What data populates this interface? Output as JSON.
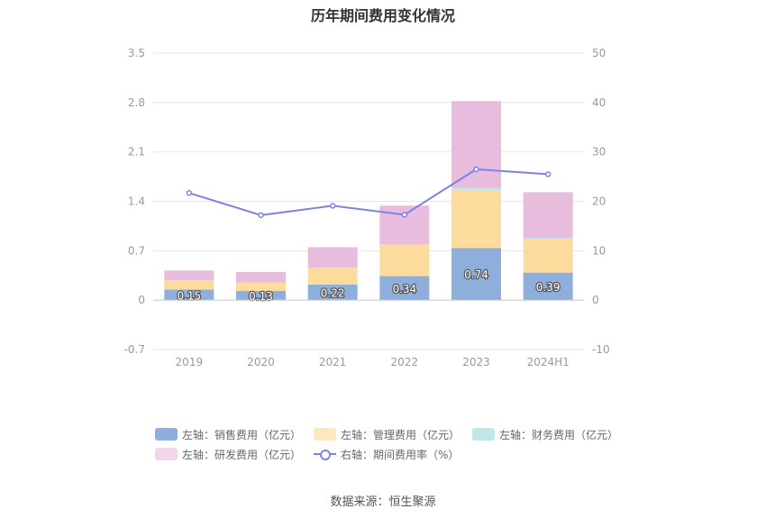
{
  "chart_data": {
    "type": "bar",
    "title": "历年期间费用变化情况",
    "categories": [
      "2019",
      "2020",
      "2021",
      "2022",
      "2023",
      "2024H1"
    ],
    "left_axis": {
      "ticks": [
        "3.5",
        "2.8",
        "2.1",
        "1.4",
        "0.7",
        "0",
        "-0.7"
      ],
      "ylim": [
        -0.7,
        3.5
      ]
    },
    "right_axis": {
      "ticks": [
        "50",
        "40",
        "30",
        "20",
        "10",
        "0",
        "-10"
      ],
      "ylim": [
        -10,
        50
      ]
    },
    "series": [
      {
        "name": "左轴：销售费用（亿元）",
        "kind": "stacked-bar",
        "color": "#8eaedc",
        "values": [
          0.15,
          0.13,
          0.22,
          0.34,
          0.74,
          0.39
        ],
        "labels": [
          "0.15",
          "0.13",
          "0.22",
          "0.34",
          "0.74",
          "0.39"
        ]
      },
      {
        "name": "左轴：管理费用（亿元）",
        "kind": "stacked-bar",
        "color": "#fddb9c",
        "values": [
          0.13,
          0.12,
          0.24,
          0.44,
          0.82,
          0.47
        ]
      },
      {
        "name": "左轴：财务费用（亿元）",
        "kind": "stacked-bar",
        "color": "#bfe8e7",
        "values": [
          0.0,
          0.0,
          0.0,
          0.01,
          0.03,
          0.02
        ]
      },
      {
        "name": "左轴：研发费用（亿元）",
        "kind": "stacked-bar",
        "color": "#e8bcdc",
        "values": [
          0.14,
          0.15,
          0.29,
          0.55,
          1.23,
          0.65
        ]
      },
      {
        "name": "右轴：期间费用率（%）",
        "kind": "line",
        "axis": "right",
        "color": "#7b83e8",
        "values": [
          21.7,
          17.2,
          19.1,
          17.3,
          26.5,
          25.5
        ]
      }
    ],
    "grid": true,
    "legend_position": "bottom"
  },
  "source_note": "数据来源：恒生聚源"
}
